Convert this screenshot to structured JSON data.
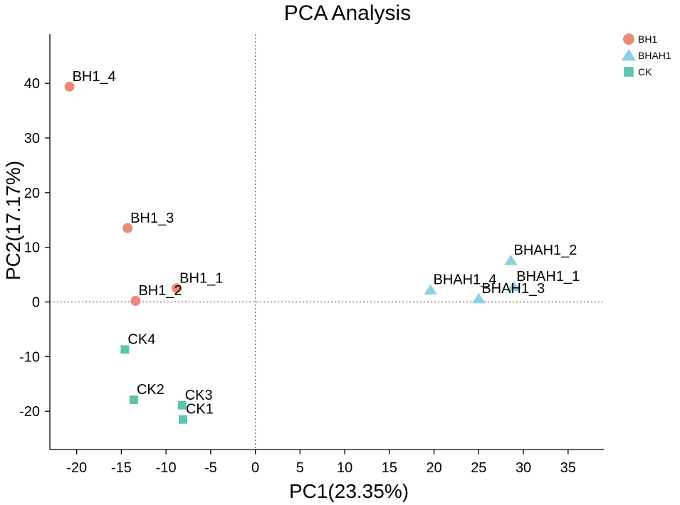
{
  "chart_data": {
    "type": "scatter",
    "title": "PCA Analysis",
    "xlabel": "PC1(23.35%)",
    "ylabel": "PC2(17.17%)",
    "xlim": [
      -23,
      39
    ],
    "ylim": [
      -27,
      49
    ],
    "xticks": [
      -20,
      -15,
      -10,
      -5,
      0,
      5,
      10,
      15,
      20,
      25,
      30,
      35
    ],
    "yticks": [
      -20,
      -10,
      0,
      10,
      20,
      30,
      40
    ],
    "zero_lines": true,
    "legend_position": "top-right",
    "series": [
      {
        "name": "BH1",
        "marker": "circle",
        "color": "#ea8a7a",
        "points": [
          {
            "label": "BH1_4",
            "x": -20.8,
            "y": 39.4
          },
          {
            "label": "BH1_3",
            "x": -14.3,
            "y": 13.5
          },
          {
            "label": "BH1_1",
            "x": -8.8,
            "y": 2.5
          },
          {
            "label": "BH1_2",
            "x": -13.4,
            "y": 0.2
          }
        ]
      },
      {
        "name": "BHAH1",
        "marker": "triangle",
        "color": "#8fd0e4",
        "points": [
          {
            "label": "BHAH1_2",
            "x": 28.6,
            "y": 7.6
          },
          {
            "label": "BHAH1_1",
            "x": 28.9,
            "y": 2.8
          },
          {
            "label": "BHAH1_4",
            "x": 19.6,
            "y": 2.2
          },
          {
            "label": "BHAH1_3",
            "x": 25.0,
            "y": 0.6
          }
        ]
      },
      {
        "name": "CK",
        "marker": "square",
        "color": "#5fc4ad",
        "points": [
          {
            "label": "CK4",
            "x": -14.6,
            "y": -8.7
          },
          {
            "label": "CK2",
            "x": -13.6,
            "y": -17.9
          },
          {
            "label": "CK3",
            "x": -8.2,
            "y": -18.9
          },
          {
            "label": "CK1",
            "x": -8.1,
            "y": -21.5
          }
        ]
      }
    ]
  }
}
